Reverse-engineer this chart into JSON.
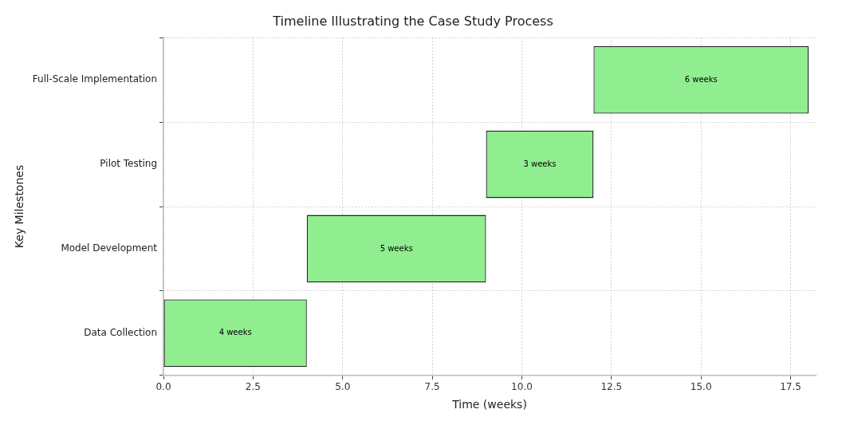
{
  "chart_data": {
    "type": "bar",
    "orientation": "horizontal",
    "title": "Timeline Illustrating the Case Study Process",
    "xlabel": "Time (weeks)",
    "ylabel": "Key Milestones",
    "categories": [
      "Full-Scale Implementation",
      "Pilot Testing",
      "Model Development",
      "Data Collection"
    ],
    "values": [
      6,
      3,
      5,
      4
    ],
    "base": [
      12,
      9,
      4,
      0
    ],
    "value_labels": [
      "6 weeks",
      "3 weeks",
      "5 weeks",
      "4 weeks"
    ],
    "color": "#90ee90",
    "xlim": [
      0,
      18.2
    ],
    "xticks": [
      {
        "value": 0,
        "label": "0.0"
      },
      {
        "value": 2.5,
        "label": "2.5"
      },
      {
        "value": 5,
        "label": "5.0"
      },
      {
        "value": 7.5,
        "label": "7.5"
      },
      {
        "value": 10,
        "label": "10.0"
      },
      {
        "value": 12.5,
        "label": "12.5"
      },
      {
        "value": 15,
        "label": "15.0"
      },
      {
        "value": 17.5,
        "label": "17.5"
      }
    ],
    "grid": true,
    "legend": false
  }
}
